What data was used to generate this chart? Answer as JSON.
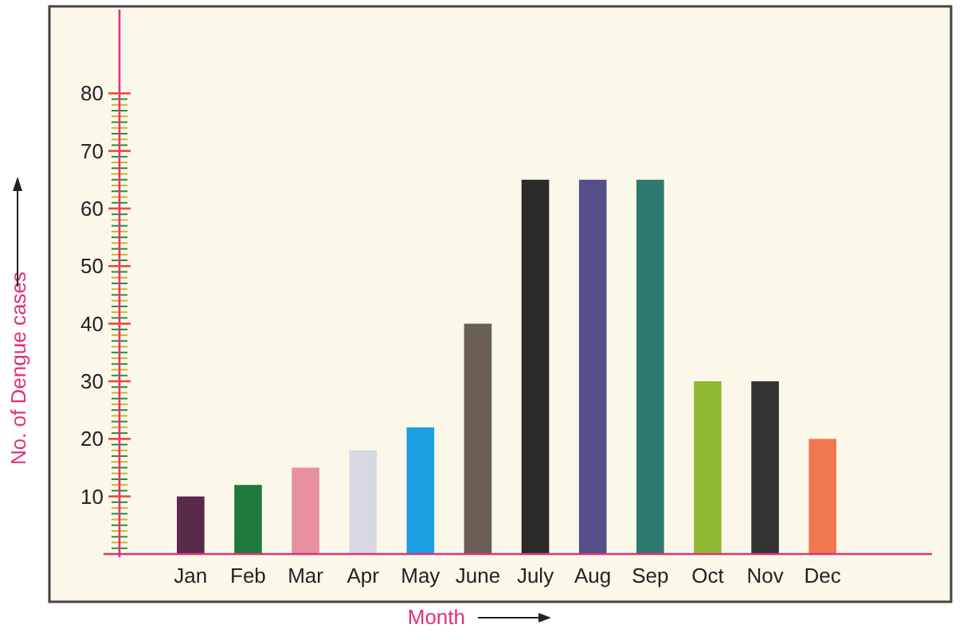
{
  "chart_data": {
    "type": "bar",
    "xlabel": "Month",
    "ylabel": "No. of Dengue cases",
    "categories": [
      "Jan",
      "Feb",
      "Mar",
      "Apr",
      "May",
      "June",
      "July",
      "Aug",
      "Sep",
      "Oct",
      "Nov",
      "Dec"
    ],
    "values": [
      10,
      12,
      15,
      18,
      22,
      40,
      65,
      65,
      65,
      30,
      30,
      20
    ],
    "colors": [
      "#5a2a4a",
      "#1e7a3a",
      "#e890a0",
      "#d8d8e2",
      "#1aa0e0",
      "#6a5e55",
      "#2a2a2a",
      "#55508a",
      "#2f7a70",
      "#90b830",
      "#333333",
      "#f07850"
    ],
    "ylim": [
      0,
      94
    ],
    "yticks": [
      10,
      20,
      30,
      40,
      50,
      60,
      70,
      80
    ],
    "grid": false
  }
}
